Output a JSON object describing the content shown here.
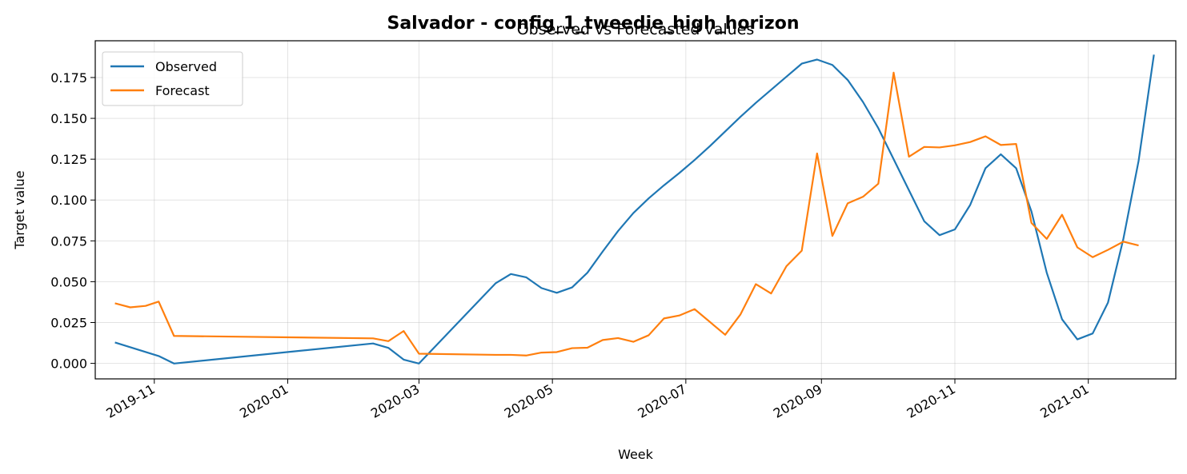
{
  "figure": {
    "suptitle": "Salvador - config_1_tweedie_high_horizon",
    "title": "Observed vs Forecasted values"
  },
  "chart_data": {
    "type": "line",
    "title": "Observed vs Forecasted values",
    "xlabel": "Week",
    "ylabel": "Target value",
    "x_type": "date",
    "xlim": [
      "2019-10-05",
      "2021-02-10"
    ],
    "ylim": [
      -0.0095,
      0.1975
    ],
    "x_ticks": [
      "2019-11-01",
      "2020-01-01",
      "2020-03-01",
      "2020-05-01",
      "2020-07-01",
      "2020-09-01",
      "2020-11-01",
      "2021-01-01"
    ],
    "x_tick_labels": [
      "2019-11",
      "2020-01",
      "2020-03",
      "2020-05",
      "2020-07",
      "2020-09",
      "2020-11",
      "2021-01"
    ],
    "y_ticks": [
      0.0,
      0.025,
      0.05,
      0.075,
      0.1,
      0.125,
      0.15,
      0.175
    ],
    "y_tick_labels": [
      "0.000",
      "0.025",
      "0.050",
      "0.075",
      "0.100",
      "0.125",
      "0.150",
      "0.175"
    ],
    "grid": true,
    "legend_position": "upper-left",
    "series": [
      {
        "name": "Observed",
        "color": "#1f77b4",
        "points": [
          [
            "2019-10-14",
            0.0128
          ],
          [
            "2019-11-03",
            0.0045
          ],
          [
            "2019-11-10",
            -0.0001
          ],
          [
            "2020-02-09",
            0.0122
          ],
          [
            "2020-02-16",
            0.0095
          ],
          [
            "2020-02-23",
            0.0023
          ],
          [
            "2020-03-01",
            -0.0001
          ],
          [
            "2020-04-05",
            0.049
          ],
          [
            "2020-04-12",
            0.0547
          ],
          [
            "2020-04-19",
            0.0527
          ],
          [
            "2020-04-26",
            0.0461
          ],
          [
            "2020-05-03",
            0.0432
          ],
          [
            "2020-05-10",
            0.0465
          ],
          [
            "2020-05-17",
            0.0555
          ],
          [
            "2020-05-24",
            0.0685
          ],
          [
            "2020-05-31",
            0.081
          ],
          [
            "2020-06-07",
            0.092
          ],
          [
            "2020-06-14",
            0.101
          ],
          [
            "2020-06-21",
            0.109
          ],
          [
            "2020-06-28",
            0.1165
          ],
          [
            "2020-07-05",
            0.1245
          ],
          [
            "2020-07-12",
            0.133
          ],
          [
            "2020-07-19",
            0.142
          ],
          [
            "2020-07-26",
            0.151
          ],
          [
            "2020-08-02",
            0.1595
          ],
          [
            "2020-08-09",
            0.1675
          ],
          [
            "2020-08-16",
            0.1755
          ],
          [
            "2020-08-23",
            0.1835
          ],
          [
            "2020-08-30",
            0.186
          ],
          [
            "2020-09-06",
            0.1827
          ],
          [
            "2020-09-13",
            0.1735
          ],
          [
            "2020-09-20",
            0.16
          ],
          [
            "2020-09-27",
            0.144
          ],
          [
            "2020-10-04",
            0.125
          ],
          [
            "2020-10-11",
            0.106
          ],
          [
            "2020-10-18",
            0.087
          ],
          [
            "2020-10-25",
            0.0785
          ],
          [
            "2020-11-01",
            0.082
          ],
          [
            "2020-11-08",
            0.097
          ],
          [
            "2020-11-15",
            0.1195
          ],
          [
            "2020-11-22",
            0.128
          ],
          [
            "2020-11-29",
            0.1195
          ],
          [
            "2020-12-06",
            0.093
          ],
          [
            "2020-12-13",
            0.0555
          ],
          [
            "2020-12-20",
            0.027
          ],
          [
            "2020-12-27",
            0.0147
          ],
          [
            "2021-01-03",
            0.0183
          ],
          [
            "2021-01-10",
            0.0372
          ],
          [
            "2021-01-17",
            0.076
          ],
          [
            "2021-01-24",
            0.124
          ],
          [
            "2021-01-31",
            0.189
          ]
        ]
      },
      {
        "name": "Forecast",
        "color": "#ff7f0e",
        "points": [
          [
            "2019-10-14",
            0.0368
          ],
          [
            "2019-10-21",
            0.0343
          ],
          [
            "2019-10-28",
            0.0352
          ],
          [
            "2019-11-03",
            0.0378
          ],
          [
            "2019-11-10",
            0.0168
          ],
          [
            "2020-02-09",
            0.0153
          ],
          [
            "2020-02-16",
            0.0136
          ],
          [
            "2020-02-23",
            0.0198
          ],
          [
            "2020-03-01",
            0.0059
          ],
          [
            "2020-04-05",
            0.0052
          ],
          [
            "2020-04-12",
            0.0052
          ],
          [
            "2020-04-19",
            0.0048
          ],
          [
            "2020-04-26",
            0.0066
          ],
          [
            "2020-05-03",
            0.0069
          ],
          [
            "2020-05-10",
            0.0093
          ],
          [
            "2020-05-17",
            0.0096
          ],
          [
            "2020-05-24",
            0.0143
          ],
          [
            "2020-05-31",
            0.0155
          ],
          [
            "2020-06-07",
            0.0132
          ],
          [
            "2020-06-14",
            0.0172
          ],
          [
            "2020-06-21",
            0.0275
          ],
          [
            "2020-06-28",
            0.0293
          ],
          [
            "2020-07-05",
            0.0332
          ],
          [
            "2020-07-19",
            0.0175
          ],
          [
            "2020-07-26",
            0.03
          ],
          [
            "2020-08-02",
            0.0485
          ],
          [
            "2020-08-09",
            0.0428
          ],
          [
            "2020-08-16",
            0.0595
          ],
          [
            "2020-08-23",
            0.069
          ],
          [
            "2020-08-30",
            0.1285
          ],
          [
            "2020-09-06",
            0.078
          ],
          [
            "2020-09-13",
            0.098
          ],
          [
            "2020-09-20",
            0.102
          ],
          [
            "2020-09-27",
            0.11
          ],
          [
            "2020-10-04",
            0.178
          ],
          [
            "2020-10-11",
            0.1265
          ],
          [
            "2020-10-18",
            0.1325
          ],
          [
            "2020-10-25",
            0.1322
          ],
          [
            "2020-11-01",
            0.1335
          ],
          [
            "2020-11-08",
            0.1355
          ],
          [
            "2020-11-15",
            0.139
          ],
          [
            "2020-11-22",
            0.1337
          ],
          [
            "2020-11-29",
            0.1343
          ],
          [
            "2020-12-06",
            0.086
          ],
          [
            "2020-12-13",
            0.0762
          ],
          [
            "2020-12-20",
            0.091
          ],
          [
            "2020-12-27",
            0.071
          ],
          [
            "2021-01-03",
            0.065
          ],
          [
            "2021-01-10",
            0.0695
          ],
          [
            "2021-01-17",
            0.0745
          ],
          [
            "2021-01-24",
            0.0722
          ]
        ]
      }
    ]
  }
}
